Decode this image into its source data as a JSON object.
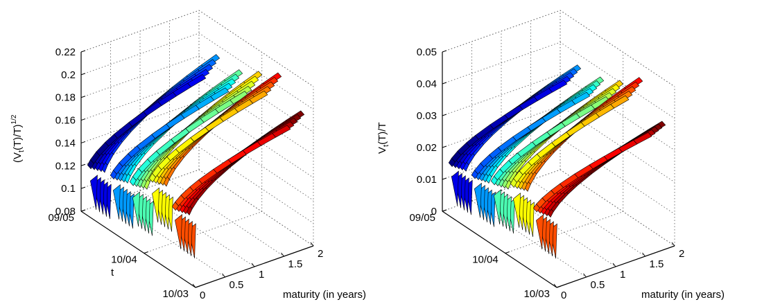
{
  "chart_data": [
    {
      "type": "surface",
      "ylabel_parts": [
        "(V",
        "t",
        "(T)/T)",
        "1/2"
      ],
      "xlabel": "maturity (in years)",
      "tlabel": "t",
      "z_ticks": [
        "0.08",
        "0.1",
        "0.12",
        "0.14",
        "0.16",
        "0.18",
        "0.2",
        "0.22"
      ],
      "zlim": [
        0.08,
        0.22
      ],
      "maturity_ticks": [
        "0",
        "0.5",
        "1",
        "1.5",
        "2"
      ],
      "maturity_lim": [
        0,
        2
      ],
      "date_ticks": [
        "10/03",
        "10/04",
        "09/05"
      ],
      "grid": true,
      "maturities": [
        0.05,
        0.1,
        0.2,
        0.35,
        0.5,
        0.75,
        1.0,
        1.25,
        1.5,
        1.75,
        2.0
      ],
      "groups": [
        {
          "t": 0.92,
          "level": 0.125,
          "top": 0.19
        },
        {
          "t": 0.72,
          "level": 0.135,
          "top": 0.21
        },
        {
          "t": 0.55,
          "level": 0.12,
          "top": 0.2
        },
        {
          "t": 0.38,
          "level": 0.115,
          "top": 0.19
        },
        {
          "t": 0.18,
          "level": 0.11,
          "top": 0.19
        }
      ]
    },
    {
      "type": "surface",
      "ylabel_parts": [
        "V",
        "t",
        "(T)/T",
        ""
      ],
      "xlabel": "maturity (in years)",
      "tlabel": "",
      "z_ticks": [
        "0",
        "0.01",
        "0.02",
        "0.03",
        "0.04",
        "0.05"
      ],
      "zlim": [
        0,
        0.05
      ],
      "maturity_ticks": [
        "0",
        "0.5",
        "1",
        "1.5",
        "2"
      ],
      "maturity_lim": [
        0,
        2
      ],
      "date_ticks": [
        "10/03",
        "10/04",
        "09/05"
      ],
      "grid": true,
      "maturities": [
        0.05,
        0.1,
        0.2,
        0.35,
        0.5,
        0.75,
        1.0,
        1.25,
        1.5,
        1.75,
        2.0
      ],
      "groups": [
        {
          "t": 0.92,
          "level": 0.016,
          "top": 0.036
        },
        {
          "t": 0.72,
          "level": 0.018,
          "top": 0.045
        },
        {
          "t": 0.55,
          "level": 0.015,
          "top": 0.04
        },
        {
          "t": 0.38,
          "level": 0.013,
          "top": 0.037
        },
        {
          "t": 0.18,
          "level": 0.012,
          "top": 0.036
        }
      ]
    }
  ]
}
